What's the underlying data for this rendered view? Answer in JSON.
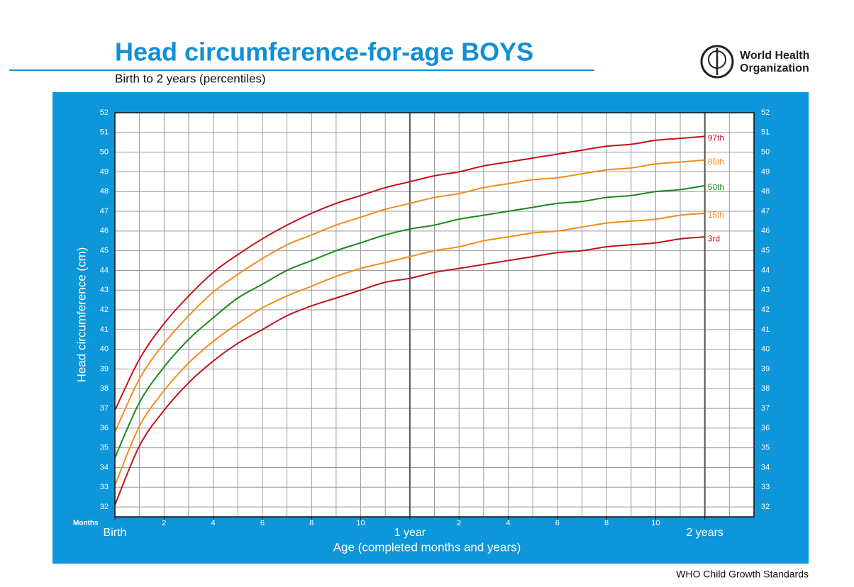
{
  "header": {
    "logo_line1": "World Health",
    "logo_line2": "Organization"
  },
  "footer": "WHO Child Growth Standards",
  "chart_data": {
    "type": "line",
    "title": "Head circumference-for-age  BOYS",
    "subtitle": "Birth to 2 years (percentiles)",
    "x_label": "Age (completed months and years)",
    "y_label": "Head circumference (cm)",
    "x_unit_label": "Months",
    "x": [
      0,
      1,
      2,
      3,
      4,
      5,
      6,
      7,
      8,
      9,
      10,
      11,
      12,
      13,
      14,
      15,
      16,
      17,
      18,
      19,
      20,
      21,
      22,
      23,
      24
    ],
    "xlim": [
      0,
      26
    ],
    "ylim": [
      31.5,
      52
    ],
    "xticks": [
      {
        "value": 0,
        "label": "Birth"
      },
      2,
      4,
      6,
      8,
      10,
      {
        "value": 12,
        "label": "1 year"
      },
      {
        "value": 14,
        "label": "2"
      },
      {
        "value": 16,
        "label": "4"
      },
      {
        "value": 18,
        "label": "6"
      },
      {
        "value": 20,
        "label": "8"
      },
      {
        "value": 22,
        "label": "10"
      },
      {
        "value": 24,
        "label": "2 years"
      }
    ],
    "x_grid": [
      1,
      2,
      3,
      4,
      5,
      6,
      7,
      8,
      9,
      10,
      11,
      12,
      13,
      14,
      15,
      16,
      17,
      18,
      19,
      20,
      21,
      22,
      23,
      24,
      25
    ],
    "yticks": [
      32,
      33,
      34,
      35,
      36,
      37,
      38,
      39,
      40,
      41,
      42,
      43,
      44,
      45,
      46,
      47,
      48,
      49,
      50,
      51,
      52
    ],
    "grid": true,
    "series": [
      {
        "name": "97th",
        "color": "#c0141c",
        "values": [
          36.9,
          39.5,
          41.3,
          42.7,
          43.9,
          44.8,
          45.6,
          46.3,
          46.9,
          47.4,
          47.8,
          48.2,
          48.5,
          48.8,
          49.0,
          49.3,
          49.5,
          49.7,
          49.9,
          50.1,
          50.3,
          50.4,
          50.6,
          50.7,
          50.8
        ]
      },
      {
        "name": "85th",
        "color": "#f28c1e",
        "values": [
          35.8,
          38.5,
          40.3,
          41.7,
          42.9,
          43.8,
          44.6,
          45.3,
          45.8,
          46.3,
          46.7,
          47.1,
          47.4,
          47.7,
          47.9,
          48.2,
          48.4,
          48.6,
          48.7,
          48.9,
          49.1,
          49.2,
          49.4,
          49.5,
          49.6
        ]
      },
      {
        "name": "50th",
        "color": "#1a8a1a",
        "values": [
          34.5,
          37.3,
          39.1,
          40.5,
          41.6,
          42.6,
          43.3,
          44.0,
          44.5,
          45.0,
          45.4,
          45.8,
          46.1,
          46.3,
          46.6,
          46.8,
          47.0,
          47.2,
          47.4,
          47.5,
          47.7,
          47.8,
          48.0,
          48.1,
          48.3
        ]
      },
      {
        "name": "15th",
        "color": "#f28c1e",
        "values": [
          33.1,
          36.1,
          37.9,
          39.3,
          40.4,
          41.3,
          42.1,
          42.7,
          43.2,
          43.7,
          44.1,
          44.4,
          44.7,
          45.0,
          45.2,
          45.5,
          45.7,
          45.9,
          46.0,
          46.2,
          46.4,
          46.5,
          46.6,
          46.8,
          46.9
        ]
      },
      {
        "name": "3rd",
        "color": "#c0141c",
        "values": [
          32.1,
          35.1,
          36.9,
          38.3,
          39.4,
          40.3,
          41.0,
          41.7,
          42.2,
          42.6,
          43.0,
          43.4,
          43.6,
          43.9,
          44.1,
          44.3,
          44.5,
          44.7,
          44.9,
          45.0,
          45.2,
          45.3,
          45.4,
          45.6,
          45.7
        ]
      }
    ]
  }
}
